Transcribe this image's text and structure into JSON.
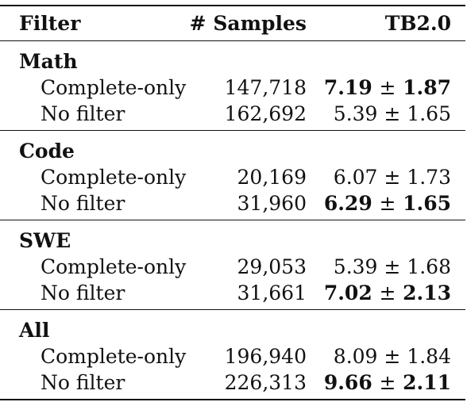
{
  "table": {
    "headers": {
      "filter": "Filter",
      "samples": "# Samples",
      "tb": "TB2.0"
    },
    "groups": [
      {
        "name": "Math",
        "rows": [
          {
            "filter": "Complete-only",
            "samples": "147,718",
            "tb_mean": "7.19",
            "pm": "±",
            "tb_std": "1.87",
            "best": true
          },
          {
            "filter": "No filter",
            "samples": "162,692",
            "tb_mean": "5.39",
            "pm": "±",
            "tb_std": "1.65",
            "best": false
          }
        ]
      },
      {
        "name": "Code",
        "rows": [
          {
            "filter": "Complete-only",
            "samples": "20,169",
            "tb_mean": "6.07",
            "pm": "±",
            "tb_std": "1.73",
            "best": false
          },
          {
            "filter": "No filter",
            "samples": "31,960",
            "tb_mean": "6.29",
            "pm": "±",
            "tb_std": "1.65",
            "best": true
          }
        ]
      },
      {
        "name": "SWE",
        "rows": [
          {
            "filter": "Complete-only",
            "samples": "29,053",
            "tb_mean": "5.39",
            "pm": "±",
            "tb_std": "1.68",
            "best": false
          },
          {
            "filter": "No filter",
            "samples": "31,661",
            "tb_mean": "7.02",
            "pm": "±",
            "tb_std": "2.13",
            "best": true
          }
        ]
      },
      {
        "name": "All",
        "rows": [
          {
            "filter": "Complete-only",
            "samples": "196,940",
            "tb_mean": "8.09",
            "pm": "±",
            "tb_std": "1.84",
            "best": false
          },
          {
            "filter": "No filter",
            "samples": "226,313",
            "tb_mean": "9.66",
            "pm": "±",
            "tb_std": "2.11",
            "best": true
          }
        ]
      }
    ]
  }
}
